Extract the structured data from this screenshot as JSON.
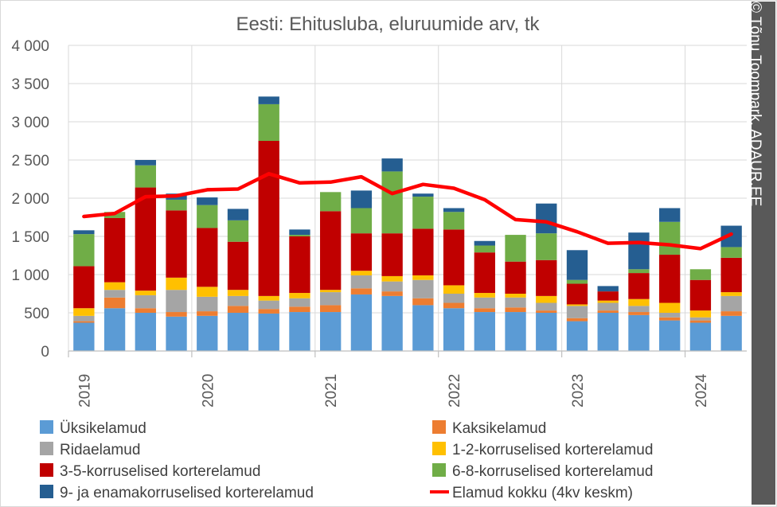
{
  "credit": "© Tõnu Toompark, ADAUR.EE",
  "chart_data": {
    "type": "bar",
    "stacked": true,
    "title": "Eesti: Ehitusluba, eluruumide arv, tk",
    "ylim": [
      0,
      4000
    ],
    "yticks": [
      0,
      500,
      1000,
      1500,
      2000,
      2500,
      3000,
      3500,
      4000
    ],
    "ytick_labels": [
      "0",
      "500",
      "1 000",
      "1 500",
      "2 000",
      "2 500",
      "3 000",
      "3 500",
      "4 000"
    ],
    "x_year_labels": [
      "2019",
      "2020",
      "2021",
      "2022",
      "2023",
      "2024"
    ],
    "categories": [
      "2019 Q1",
      "2019 Q2",
      "2019 Q3",
      "2019 Q4",
      "2020 Q1",
      "2020 Q2",
      "2020 Q3",
      "2020 Q4",
      "2021 Q1",
      "2021 Q2",
      "2021 Q3",
      "2021 Q4",
      "2022 Q1",
      "2022 Q2",
      "2022 Q3",
      "2022 Q4",
      "2023 Q1",
      "2023 Q2",
      "2023 Q3",
      "2023 Q4",
      "2024 Q1",
      "2024 Q2"
    ],
    "grid": true,
    "legend_position": "bottom",
    "series": [
      {
        "name": "Üksikelamud",
        "color": "#5b9bd5",
        "values": [
          370,
          560,
          500,
          450,
          460,
          500,
          490,
          510,
          510,
          740,
          720,
          600,
          560,
          510,
          510,
          500,
          390,
          500,
          470,
          400,
          370,
          460
        ]
      },
      {
        "name": "Kaksikelamud",
        "color": "#ed7d31",
        "values": [
          20,
          140,
          60,
          60,
          60,
          90,
          60,
          70,
          90,
          80,
          60,
          90,
          70,
          50,
          60,
          30,
          40,
          30,
          40,
          40,
          30,
          60
        ]
      },
      {
        "name": "Ridaelamud",
        "color": "#a5a5a5",
        "values": [
          70,
          100,
          170,
          290,
          190,
          130,
          110,
          110,
          170,
          170,
          130,
          240,
          120,
          140,
          130,
          100,
          160,
          100,
          80,
          60,
          40,
          200
        ]
      },
      {
        "name": "1-2-korruselised korterelamud",
        "color": "#ffc000",
        "values": [
          100,
          100,
          60,
          160,
          130,
          80,
          60,
          70,
          30,
          60,
          70,
          60,
          110,
          60,
          50,
          90,
          20,
          30,
          90,
          130,
          90,
          50
        ]
      },
      {
        "name": "3-5-korruselised korterelamud",
        "color": "#c00000",
        "values": [
          550,
          840,
          1350,
          880,
          770,
          630,
          2030,
          740,
          1030,
          490,
          560,
          610,
          730,
          530,
          420,
          470,
          270,
          120,
          340,
          630,
          400,
          450
        ]
      },
      {
        "name": "6-8-korruselised korterelamud",
        "color": "#70ad47",
        "values": [
          420,
          80,
          290,
          140,
          300,
          280,
          480,
          20,
          250,
          330,
          810,
          420,
          230,
          90,
          350,
          350,
          50,
          0,
          50,
          430,
          140,
          140
        ]
      },
      {
        "name": "9- ja enamakorruselised korterelamud",
        "color": "#255e91",
        "values": [
          50,
          0,
          70,
          80,
          100,
          150,
          100,
          70,
          0,
          230,
          170,
          40,
          50,
          60,
          0,
          390,
          390,
          70,
          480,
          180,
          0,
          280
        ]
      }
    ],
    "line_series": {
      "name": "Elamud kokku (4kv keskm)",
      "color": "#ff0000",
      "values": [
        1760,
        1800,
        2020,
        2030,
        2110,
        2120,
        2320,
        2200,
        2210,
        2280,
        2060,
        2180,
        2130,
        1980,
        1720,
        1690,
        1560,
        1410,
        1420,
        1390,
        1340,
        1530
      ]
    }
  }
}
